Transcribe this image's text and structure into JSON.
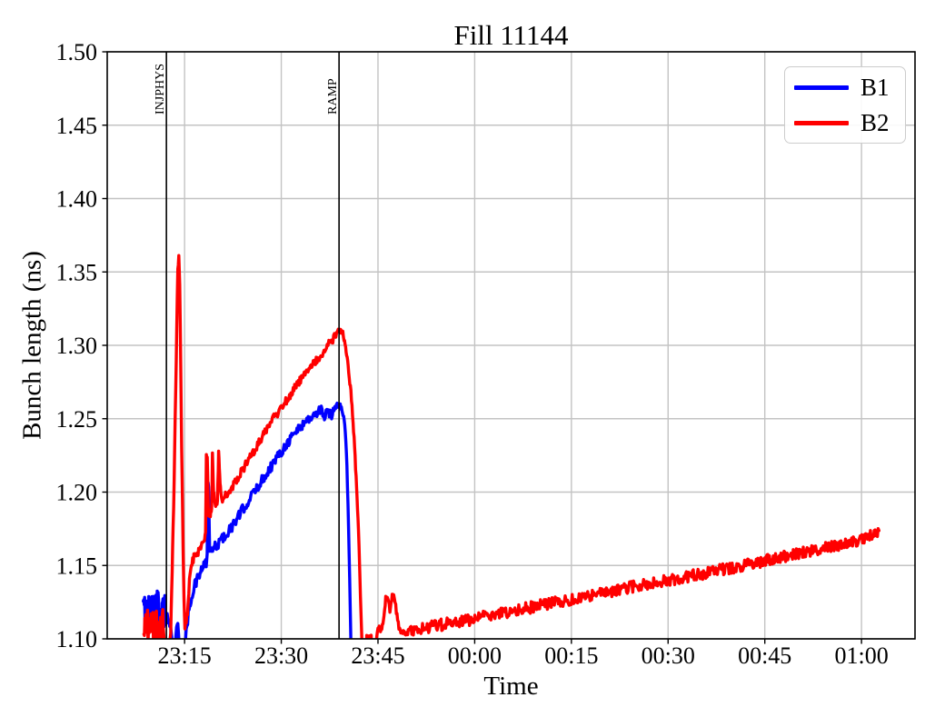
{
  "window": {
    "background": "#ffffff"
  },
  "chart_data": {
    "type": "line",
    "title": "Fill 11144",
    "xlabel": "Time",
    "ylabel": "Bunch length (ns)",
    "ylim": [
      1.1,
      1.5
    ],
    "xlim_minutes_from_2300": [
      3.0,
      128.3
    ],
    "grid": true,
    "grid_color": "#c3c3c3",
    "axis_color": "#000000",
    "legend_position": "upper right",
    "yticks": [
      {
        "v": 1.1,
        "label": "1.10"
      },
      {
        "v": 1.15,
        "label": "1.15"
      },
      {
        "v": 1.2,
        "label": "1.20"
      },
      {
        "v": 1.25,
        "label": "1.25"
      },
      {
        "v": 1.3,
        "label": "1.30"
      },
      {
        "v": 1.35,
        "label": "1.35"
      },
      {
        "v": 1.4,
        "label": "1.40"
      },
      {
        "v": 1.45,
        "label": "1.45"
      },
      {
        "v": 1.5,
        "label": "1.50"
      }
    ],
    "xticks": [
      {
        "t": 15,
        "label": "23:15"
      },
      {
        "t": 30,
        "label": "23:30"
      },
      {
        "t": 45,
        "label": "23:45"
      },
      {
        "t": 60,
        "label": "00:00"
      },
      {
        "t": 75,
        "label": "00:15"
      },
      {
        "t": 90,
        "label": "00:30"
      },
      {
        "t": 105,
        "label": "00:45"
      },
      {
        "t": 120,
        "label": "01:00"
      }
    ],
    "events": [
      {
        "t": 12.18,
        "label": "INJPHYS"
      },
      {
        "t": 38.96,
        "label": "RAMP"
      }
    ],
    "series": [
      {
        "name": "B1",
        "color": "#0000ff",
        "segments": [
          {
            "noise": 0.013,
            "step": 0.07,
            "points": [
              [
                8.6,
                1.118
              ],
              [
                10.2,
                1.121
              ],
              [
                12.0,
                1.119
              ]
            ]
          },
          {
            "noise": 0.004,
            "step": 0.1,
            "points": [
              [
                12.0,
                1.117
              ],
              [
                12.7,
                1.111
              ],
              [
                13.1,
                1.098
              ],
              [
                13.4,
                1.087
              ]
            ]
          },
          {
            "noise": 0.003,
            "step": 0.1,
            "points": [
              [
                13.4,
                1.087
              ],
              [
                13.75,
                1.106
              ],
              [
                13.95,
                1.111
              ],
              [
                14.15,
                1.098
              ],
              [
                14.4,
                1.087
              ],
              [
                14.95,
                1.083
              ]
            ]
          },
          {
            "noise": 0.0035,
            "step": 0.1,
            "points": [
              [
                14.95,
                1.083
              ],
              [
                15.25,
                1.104
              ],
              [
                15.7,
                1.121
              ],
              [
                16.3,
                1.133
              ],
              [
                17.0,
                1.141
              ],
              [
                17.8,
                1.148
              ],
              [
                18.35,
                1.152
              ]
            ]
          },
          {
            "noise": 0.002,
            "step": 0.07,
            "points": [
              [
                18.35,
                1.152
              ],
              [
                18.5,
                1.156
              ],
              [
                18.6,
                1.207
              ],
              [
                18.72,
                1.204
              ],
              [
                18.9,
                1.158
              ]
            ]
          },
          {
            "noise": 0.0035,
            "step": 0.12,
            "points": [
              [
                18.9,
                1.158
              ],
              [
                19.6,
                1.162
              ],
              [
                20.6,
                1.167
              ],
              [
                21.6,
                1.172
              ],
              [
                22.6,
                1.178
              ],
              [
                24.0,
                1.188
              ],
              [
                25.5,
                1.198
              ],
              [
                27.0,
                1.208
              ],
              [
                28.5,
                1.218
              ],
              [
                30.0,
                1.228
              ],
              [
                31.5,
                1.237
              ],
              [
                33.0,
                1.245
              ],
              [
                34.3,
                1.25
              ],
              [
                35.3,
                1.253
              ],
              [
                36.2,
                1.257
              ],
              [
                36.7,
                1.251
              ],
              [
                37.2,
                1.255
              ],
              [
                37.7,
                1.252
              ],
              [
                38.3,
                1.258
              ],
              [
                38.9,
                1.261
              ],
              [
                39.15,
                1.26
              ]
            ]
          },
          {
            "noise": 0.002,
            "step": 0.08,
            "points": [
              [
                39.15,
                1.26
              ],
              [
                39.5,
                1.254
              ],
              [
                39.85,
                1.247
              ],
              [
                40.1,
                1.228
              ],
              [
                40.35,
                1.193
              ],
              [
                40.6,
                1.143
              ],
              [
                40.8,
                1.095
              ],
              [
                40.95,
                1.07
              ]
            ]
          }
        ]
      },
      {
        "name": "B2",
        "color": "#ff0000",
        "segments": [
          {
            "noise": 0.012,
            "step": 0.07,
            "points": [
              [
                8.7,
                1.109
              ],
              [
                10.5,
                1.107
              ],
              [
                11.7,
                1.109
              ]
            ]
          },
          {
            "noise": 0.004,
            "step": 0.1,
            "points": [
              [
                11.7,
                1.107
              ],
              [
                12.0,
                1.096
              ],
              [
                12.55,
                1.088
              ]
            ]
          },
          {
            "noise": 0.002,
            "step": 0.08,
            "points": [
              [
                12.55,
                1.088
              ],
              [
                12.85,
                1.103
              ],
              [
                13.3,
                1.19
              ],
              [
                13.95,
                1.352
              ],
              [
                14.1,
                1.361
              ],
              [
                14.25,
                1.34
              ],
              [
                14.55,
                1.23
              ],
              [
                14.85,
                1.14
              ],
              [
                15.05,
                1.107
              ]
            ]
          },
          {
            "noise": 0.0028,
            "step": 0.09,
            "points": [
              [
                15.05,
                1.107
              ],
              [
                15.45,
                1.118
              ],
              [
                15.75,
                1.14
              ],
              [
                16.05,
                1.15
              ],
              [
                16.45,
                1.156
              ],
              [
                17.1,
                1.159
              ],
              [
                17.6,
                1.164
              ],
              [
                18.05,
                1.168
              ]
            ]
          },
          {
            "noise": 0.002,
            "step": 0.06,
            "points": [
              [
                18.05,
                1.168
              ],
              [
                18.25,
                1.172
              ],
              [
                18.38,
                1.224
              ],
              [
                18.52,
                1.224
              ],
              [
                18.7,
                1.186
              ],
              [
                19.0,
                1.184
              ],
              [
                19.2,
                1.19
              ],
              [
                19.32,
                1.227
              ],
              [
                19.5,
                1.2
              ],
              [
                19.75,
                1.191
              ],
              [
                20.1,
                1.193
              ],
              [
                20.28,
                1.228
              ],
              [
                20.5,
                1.207
              ],
              [
                20.75,
                1.195
              ]
            ]
          },
          {
            "noise": 0.003,
            "step": 0.12,
            "points": [
              [
                20.75,
                1.195
              ],
              [
                21.6,
                1.198
              ],
              [
                22.6,
                1.205
              ],
              [
                24.0,
                1.215
              ],
              [
                25.5,
                1.226
              ],
              [
                27.0,
                1.237
              ],
              [
                28.5,
                1.248
              ],
              [
                30.0,
                1.258
              ],
              [
                31.5,
                1.267
              ],
              [
                33.0,
                1.276
              ],
              [
                34.5,
                1.285
              ],
              [
                36.0,
                1.293
              ],
              [
                37.0,
                1.299
              ],
              [
                38.0,
                1.304
              ],
              [
                38.7,
                1.309
              ],
              [
                39.2,
                1.312
              ]
            ]
          },
          {
            "noise": 0.002,
            "step": 0.08,
            "points": [
              [
                39.2,
                1.312
              ],
              [
                39.55,
                1.308
              ],
              [
                39.9,
                1.301
              ],
              [
                40.3,
                1.289
              ],
              [
                40.8,
                1.268
              ],
              [
                41.3,
                1.237
              ],
              [
                41.9,
                1.183
              ],
              [
                42.35,
                1.12
              ],
              [
                42.6,
                1.085
              ]
            ]
          },
          {
            "noise": 0.002,
            "step": 0.1,
            "points": [
              [
                42.6,
                1.085
              ],
              [
                43.15,
                1.085
              ],
              [
                43.25,
                1.102
              ],
              [
                43.95,
                1.103
              ],
              [
                44.1,
                1.085
              ],
              [
                44.5,
                1.088
              ],
              [
                44.8,
                1.101
              ],
              [
                45.1,
                1.108
              ],
              [
                45.5,
                1.106
              ],
              [
                45.85,
                1.113
              ],
              [
                46.2,
                1.127
              ],
              [
                46.55,
                1.128
              ],
              [
                46.85,
                1.119
              ],
              [
                47.2,
                1.13
              ],
              [
                47.55,
                1.128
              ],
              [
                47.95,
                1.116
              ],
              [
                48.35,
                1.106
              ],
              [
                49.2,
                1.103
              ],
              [
                50.0,
                1.106
              ]
            ]
          },
          {
            "noise": 0.004,
            "step": 0.12,
            "points": [
              [
                50.0,
                1.106
              ],
              [
                58.0,
                1.112
              ],
              [
                66.0,
                1.119
              ],
              [
                75.0,
                1.127
              ],
              [
                85.0,
                1.136
              ],
              [
                95.0,
                1.144
              ],
              [
                105.0,
                1.153
              ],
              [
                113.0,
                1.161
              ],
              [
                118.0,
                1.165
              ],
              [
                122.7,
                1.172
              ]
            ]
          }
        ]
      }
    ]
  }
}
